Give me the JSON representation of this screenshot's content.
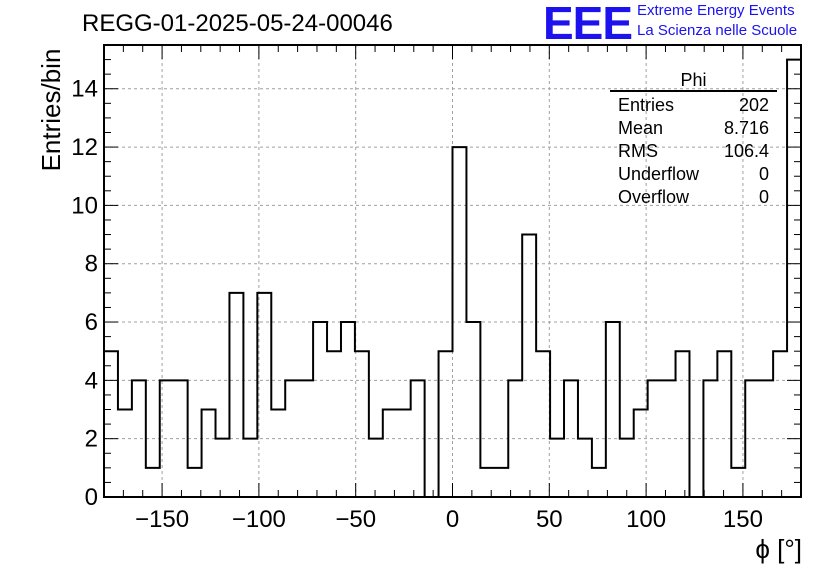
{
  "title": "REGG-01-2025-05-24-00046",
  "logo": {
    "mark": "EEE",
    "line1": "Extreme Energy Events",
    "line2": "La Scienza nelle Scuole",
    "color": "#1c12ee"
  },
  "stats_box": {
    "title": "Phi",
    "rows": [
      {
        "label": "Entries",
        "value": "202"
      },
      {
        "label": "Mean",
        "value": "8.716"
      },
      {
        "label": "RMS",
        "value": "106.4"
      },
      {
        "label": "Underflow",
        "value": "0"
      },
      {
        "label": "Overflow",
        "value": "0"
      }
    ]
  },
  "chart_data": {
    "type": "bar",
    "histogram": true,
    "title": "REGG-01-2025-05-24-00046",
    "xlabel": "ϕ [°]",
    "ylabel": "Entries/bin",
    "xlim": [
      -180,
      180
    ],
    "ylim": [
      0,
      15.5
    ],
    "bin_width": 7.2,
    "values": [
      5,
      3,
      4,
      1,
      4,
      4,
      1,
      3,
      2,
      7,
      2,
      7,
      3,
      4,
      4,
      6,
      5,
      6,
      5,
      2,
      3,
      3,
      4,
      0,
      5,
      12,
      6,
      1,
      1,
      4,
      9,
      5,
      2,
      4,
      2,
      1,
      6,
      2,
      3,
      4,
      4,
      5,
      0,
      4,
      5,
      1,
      4,
      4,
      5,
      15
    ],
    "x_ticks": [
      -150,
      -100,
      -50,
      0,
      50,
      100,
      150
    ],
    "x_tick_labels": [
      "−150",
      "−100",
      "−50",
      "0",
      "50",
      "100",
      "150"
    ],
    "y_ticks": [
      0,
      2,
      4,
      6,
      8,
      10,
      12,
      14
    ],
    "y_tick_labels": [
      "0",
      "2",
      "4",
      "6",
      "8",
      "10",
      "12",
      "14"
    ],
    "grid": true,
    "line_color": "#000000",
    "grid_color": "#a0a0a0"
  }
}
